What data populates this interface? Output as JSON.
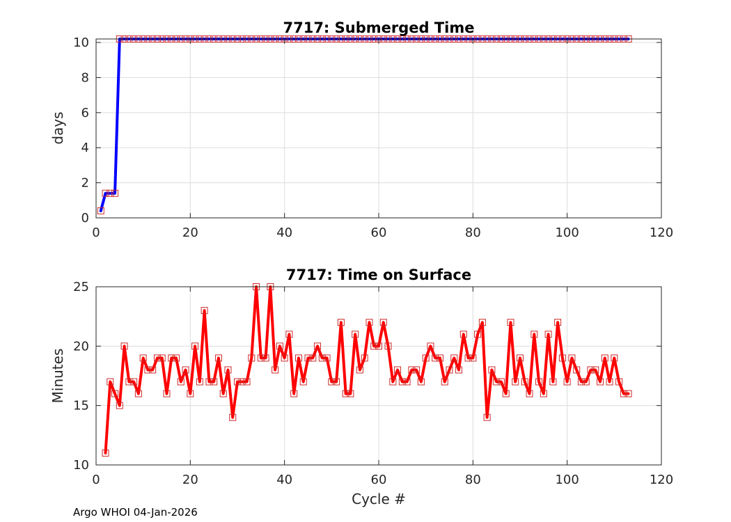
{
  "footer": "Argo WHOI 04-Jan-2026",
  "chart_data": [
    {
      "type": "line",
      "title": "7717: Submerged Time",
      "xlabel": "",
      "ylabel": "days",
      "xlim": [
        0,
        120
      ],
      "ylim": [
        0,
        10.2
      ],
      "xticks": [
        0,
        20,
        40,
        60,
        80,
        100,
        120
      ],
      "yticks": [
        0,
        2,
        4,
        6,
        8,
        10
      ],
      "grid": true,
      "color": "#0000ff",
      "marker": "square",
      "series": [
        {
          "x": [
            1,
            2,
            3,
            4,
            5,
            6,
            7,
            8,
            9,
            10,
            11,
            12,
            13,
            14,
            15,
            16,
            17,
            18,
            19,
            20,
            21,
            22,
            23,
            24,
            25,
            26,
            27,
            28,
            29,
            30,
            31,
            32,
            33,
            34,
            35,
            36,
            37,
            38,
            39,
            40,
            41,
            42,
            43,
            44,
            45,
            46,
            47,
            48,
            49,
            50,
            51,
            52,
            53,
            54,
            55,
            56,
            57,
            58,
            59,
            60,
            61,
            62,
            63,
            64,
            65,
            66,
            67,
            68,
            69,
            70,
            71,
            72,
            73,
            74,
            75,
            76,
            77,
            78,
            79,
            80,
            81,
            82,
            83,
            84,
            85,
            86,
            87,
            88,
            89,
            90,
            91,
            92,
            93,
            94,
            95,
            96,
            97,
            98,
            99,
            100,
            101,
            102,
            103,
            104,
            105,
            106,
            107,
            108,
            109,
            110,
            111,
            112,
            113
          ],
          "y": [
            0.4,
            1.4,
            1.4,
            1.4,
            10.2,
            10.2,
            10.2,
            10.2,
            10.2,
            10.2,
            10.2,
            10.2,
            10.2,
            10.2,
            10.2,
            10.2,
            10.2,
            10.2,
            10.2,
            10.2,
            10.2,
            10.2,
            10.2,
            10.2,
            10.2,
            10.2,
            10.2,
            10.2,
            10.2,
            10.2,
            10.2,
            10.2,
            10.2,
            10.2,
            10.2,
            10.2,
            10.2,
            10.2,
            10.2,
            10.2,
            10.2,
            10.2,
            10.2,
            10.2,
            10.2,
            10.2,
            10.2,
            10.2,
            10.2,
            10.2,
            10.2,
            10.2,
            10.2,
            10.2,
            10.2,
            10.2,
            10.2,
            10.2,
            10.2,
            10.2,
            10.2,
            10.2,
            10.2,
            10.2,
            10.2,
            10.2,
            10.2,
            10.2,
            10.2,
            10.2,
            10.2,
            10.2,
            10.2,
            10.2,
            10.2,
            10.2,
            10.2,
            10.2,
            10.2,
            10.2,
            10.2,
            10.2,
            10.2,
            10.2,
            10.2,
            10.2,
            10.2,
            10.2,
            10.2,
            10.2,
            10.2,
            10.2,
            10.2,
            10.2,
            10.2,
            10.2,
            10.2,
            10.2,
            10.2,
            10.2,
            10.2,
            10.2,
            10.2,
            10.2,
            10.2,
            10.2,
            10.2,
            10.2,
            10.2,
            10.2,
            10.2,
            10.2,
            10.2
          ]
        }
      ]
    },
    {
      "type": "line",
      "title": "7717: Time on Surface",
      "xlabel": "Cycle #",
      "ylabel": "Minutes",
      "xlim": [
        0,
        120
      ],
      "ylim": [
        10,
        25
      ],
      "xticks": [
        0,
        20,
        40,
        60,
        80,
        100,
        120
      ],
      "yticks": [
        10,
        15,
        20,
        25
      ],
      "grid": true,
      "color": "#ff0000",
      "marker": "square",
      "series": [
        {
          "x": [
            2,
            3,
            4,
            5,
            6,
            7,
            8,
            9,
            10,
            11,
            12,
            13,
            14,
            15,
            16,
            17,
            18,
            19,
            20,
            21,
            22,
            23,
            24,
            25,
            26,
            27,
            28,
            29,
            30,
            31,
            32,
            33,
            34,
            35,
            36,
            37,
            38,
            39,
            40,
            41,
            42,
            43,
            44,
            45,
            46,
            47,
            48,
            49,
            50,
            51,
            52,
            53,
            54,
            55,
            56,
            57,
            58,
            59,
            60,
            61,
            62,
            63,
            64,
            65,
            66,
            67,
            68,
            69,
            70,
            71,
            72,
            73,
            74,
            75,
            76,
            77,
            78,
            79,
            80,
            81,
            82,
            83,
            84,
            85,
            86,
            87,
            88,
            89,
            90,
            91,
            92,
            93,
            94,
            95,
            96,
            97,
            98,
            99,
            100,
            101,
            102,
            103,
            104,
            105,
            106,
            107,
            108,
            109,
            110,
            111,
            112,
            113
          ],
          "y": [
            11,
            17,
            16,
            15,
            20,
            17,
            17,
            16,
            19,
            18,
            18,
            19,
            19,
            16,
            19,
            19,
            17,
            18,
            16,
            20,
            17,
            23,
            17,
            17,
            19,
            16,
            18,
            14,
            17,
            17,
            17,
            19,
            25,
            19,
            19,
            25,
            18,
            20,
            19,
            21,
            16,
            19,
            17,
            19,
            19,
            20,
            19,
            19,
            17,
            17,
            22,
            16,
            16,
            21,
            18,
            19,
            22,
            20,
            20,
            22,
            20,
            17,
            18,
            17,
            17,
            18,
            18,
            17,
            19,
            20,
            19,
            19,
            17,
            18,
            19,
            18,
            21,
            19,
            19,
            21,
            22,
            14,
            18,
            17,
            17,
            16,
            22,
            17,
            19,
            17,
            16,
            21,
            17,
            16,
            21,
            17,
            22,
            19,
            17,
            19,
            18,
            17,
            17,
            18,
            18,
            17,
            19,
            17,
            19,
            17,
            16,
            16
          ]
        }
      ]
    }
  ]
}
